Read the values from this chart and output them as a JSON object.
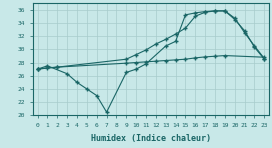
{
  "xlabel": "Humidex (Indice chaleur)",
  "bg_color": "#c8e8e8",
  "grid_color": "#a8cccc",
  "line_color": "#1a6666",
  "xlim": [
    -0.5,
    23.5
  ],
  "ylim": [
    20,
    37
  ],
  "yticks": [
    20,
    22,
    24,
    26,
    28,
    30,
    32,
    34,
    36
  ],
  "xticks": [
    0,
    1,
    2,
    3,
    4,
    5,
    6,
    7,
    8,
    9,
    10,
    11,
    12,
    13,
    14,
    15,
    16,
    17,
    18,
    19,
    20,
    21,
    22,
    23
  ],
  "line1_x": [
    0,
    1,
    2,
    9,
    10,
    11,
    12,
    13,
    14,
    15,
    16,
    17,
    18,
    19,
    23
  ],
  "line1_y": [
    27.0,
    27.2,
    27.3,
    27.9,
    28.0,
    28.1,
    28.2,
    28.3,
    28.4,
    28.5,
    28.7,
    28.85,
    28.95,
    29.05,
    28.8
  ],
  "line2_x": [
    0,
    1,
    3,
    4,
    5,
    6,
    7,
    9,
    10,
    11,
    13,
    14,
    15,
    16,
    17,
    18,
    19,
    20,
    21,
    22,
    23
  ],
  "line2_y": [
    27.0,
    27.5,
    26.3,
    25.0,
    24.0,
    23.0,
    20.5,
    26.5,
    27.0,
    27.8,
    30.5,
    31.2,
    35.2,
    35.5,
    35.7,
    35.8,
    35.8,
    34.7,
    32.5,
    30.5,
    28.6
  ],
  "line3_x": [
    0,
    2,
    9,
    10,
    11,
    12,
    13,
    14,
    15,
    16,
    17,
    18,
    19,
    20,
    21,
    22,
    23
  ],
  "line3_y": [
    27.0,
    27.3,
    28.5,
    29.2,
    29.9,
    30.8,
    31.5,
    32.3,
    33.2,
    35.0,
    35.6,
    35.8,
    35.8,
    34.5,
    32.8,
    30.3,
    28.5
  ]
}
